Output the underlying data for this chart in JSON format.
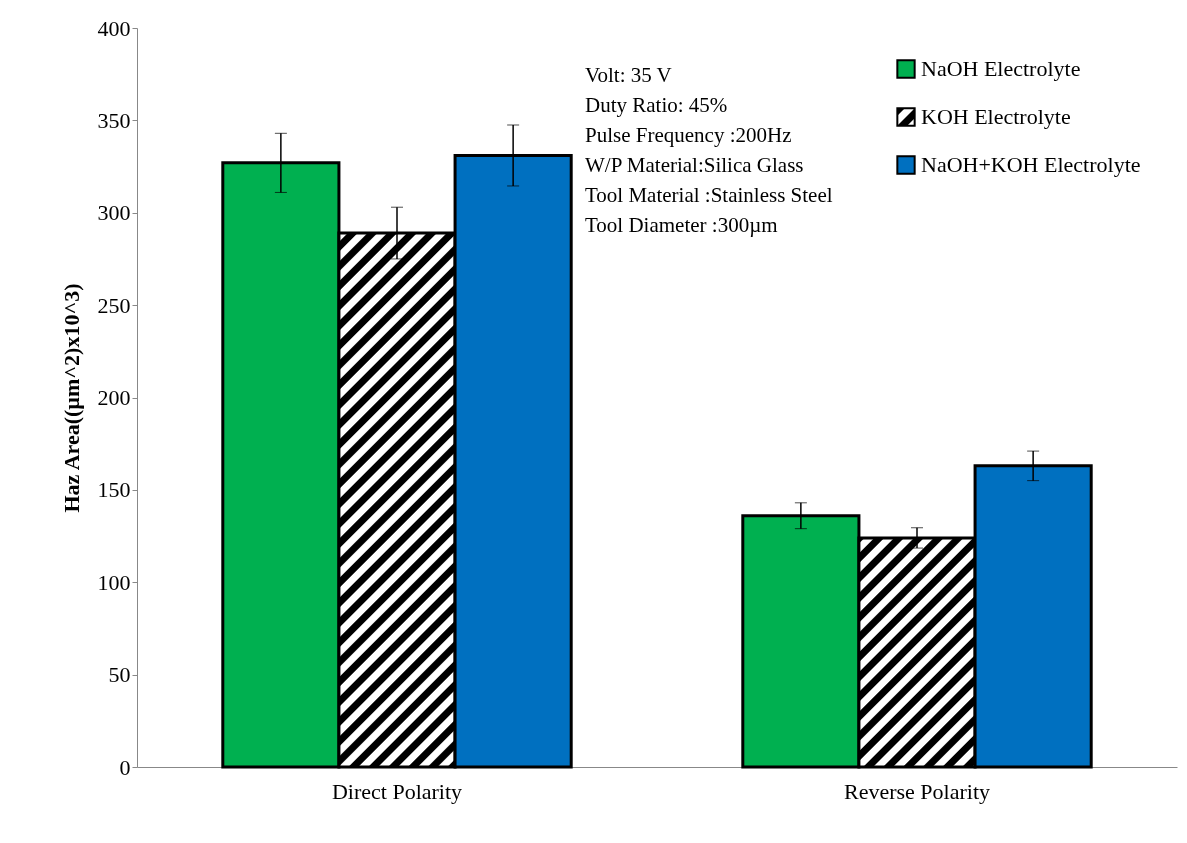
{
  "chart_data": {
    "type": "bar",
    "ylabel": "Haz Area((µm^2)x10^3)",
    "categories": [
      "Direct Polarity",
      "Reverse Polarity"
    ],
    "series": [
      {
        "name": "NaOH Electrolyte",
        "color": "#00b050",
        "values": [
          327,
          136
        ],
        "errors": [
          16,
          7
        ]
      },
      {
        "name": "KOH Electrolyte",
        "color": "#000000",
        "values": [
          289,
          124
        ],
        "errors": [
          14,
          5.5
        ]
      },
      {
        "name": "NaOH+KOH Electrolyte",
        "color": "#0070c0",
        "values": [
          331,
          163
        ],
        "errors": [
          16.5,
          8
        ]
      }
    ],
    "ylim": [
      0,
      400
    ],
    "yticks": [
      0,
      50,
      100,
      150,
      200,
      250,
      300,
      350,
      400
    ],
    "grid": false,
    "legend": "top right",
    "annotations": [
      "Volt: 35 V",
      "Duty Ratio: 45%",
      "Pulse Frequency :200Hz",
      "W/P Material:Silica  Glass",
      "Tool Material  :Stainless  Steel",
      "Tool Diameter  :300µm"
    ]
  }
}
